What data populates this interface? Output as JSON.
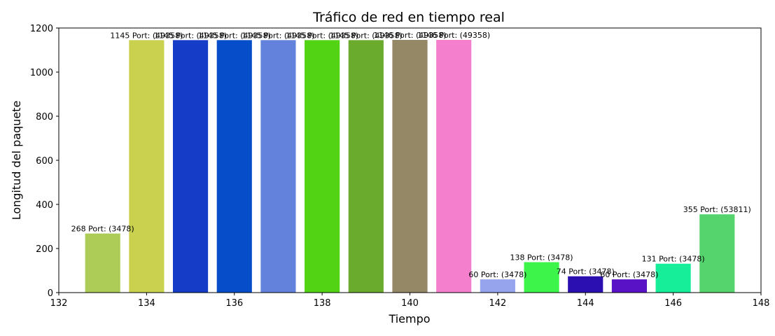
{
  "chart_data": {
    "type": "bar",
    "title": "Tráfico de red en tiempo real",
    "xlabel": "Tiempo",
    "ylabel": "Longitud del paquete",
    "xlim": [
      132,
      148
    ],
    "ylim": [
      0,
      1200
    ],
    "xticks": [
      132,
      134,
      136,
      138,
      140,
      142,
      144,
      146,
      148
    ],
    "yticks": [
      0,
      200,
      400,
      600,
      800,
      1000,
      1200
    ],
    "grid": false,
    "bar_width": 0.8,
    "bars": [
      {
        "x": 133,
        "value": 268,
        "label": "268 Port: (3478)",
        "color": "#adcc57"
      },
      {
        "x": 134,
        "value": 1145,
        "label": "1145 Port: (49358)",
        "color": "#c9d14f"
      },
      {
        "x": 135,
        "value": 1145,
        "label": "1145 Port: (49358)",
        "color": "#143cc7"
      },
      {
        "x": 136,
        "value": 1145,
        "label": "1145 Port: (49358)",
        "color": "#064dc9"
      },
      {
        "x": 137,
        "value": 1145,
        "label": "1145 Port: (49358)",
        "color": "#6282dc"
      },
      {
        "x": 138,
        "value": 1145,
        "label": "1145 Port: (49358)",
        "color": "#52d414"
      },
      {
        "x": 139,
        "value": 1145,
        "label": "1145 Port: (49358)",
        "color": "#6aaa2c"
      },
      {
        "x": 140,
        "value": 1146,
        "label": "1146 Port: (49358)",
        "color": "#948866"
      },
      {
        "x": 141,
        "value": 1146,
        "label": "1146 Port: (49358)",
        "color": "#f47fcd"
      },
      {
        "x": 142,
        "value": 60,
        "label": "60 Port: (3478)",
        "color": "#96a3ed"
      },
      {
        "x": 143,
        "value": 138,
        "label": "138 Port: (3478)",
        "color": "#3df44a"
      },
      {
        "x": 144,
        "value": 74,
        "label": "74 Port: (3478)",
        "color": "#2c0fb0"
      },
      {
        "x": 145,
        "value": 60,
        "label": "60 Port: (3478)",
        "color": "#5a12c7"
      },
      {
        "x": 146,
        "value": 131,
        "label": "131 Port: (3478)",
        "color": "#17ee9a"
      },
      {
        "x": 147,
        "value": 355,
        "label": "355 Port: (53811)",
        "color": "#55d46d"
      }
    ]
  }
}
